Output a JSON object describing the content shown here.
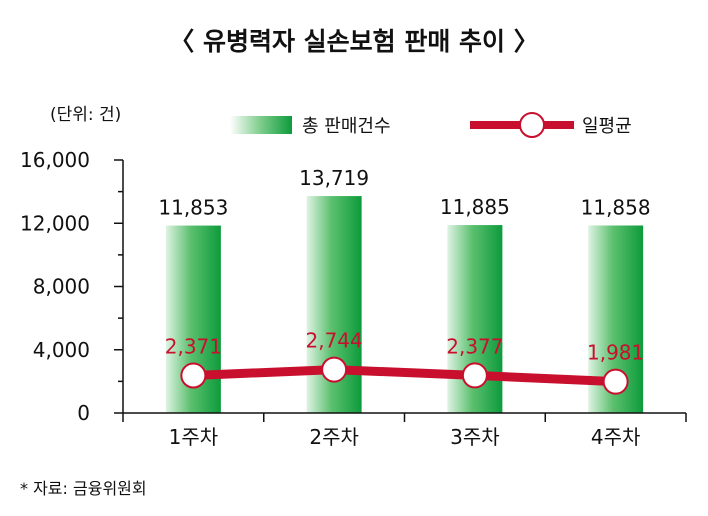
{
  "chart_data": {
    "type": "bar",
    "title": "〈 유병력자 실손보험 판매 추이 〉",
    "unit_label": "(단위: 건)",
    "source": "* 자료: 금융위원회",
    "categories": [
      "1주차",
      "2주차",
      "3주차",
      "4주차"
    ],
    "ylim": [
      0,
      16000
    ],
    "yticks": [
      "16,000",
      "12,000",
      "8,000",
      "4,000",
      "0"
    ],
    "ytick_values": [
      16000,
      12000,
      8000,
      4000,
      0
    ],
    "grid": false,
    "legend_position": "top",
    "series": [
      {
        "name": "총 판매건수",
        "kind": "bar",
        "values": [
          11853,
          13719,
          11885,
          11858
        ],
        "labels": [
          "11,853",
          "13,719",
          "11,885",
          "11,858"
        ],
        "color": "#1aa84a"
      },
      {
        "name": "일평균",
        "kind": "line",
        "values": [
          2371,
          2744,
          2377,
          1981
        ],
        "labels": [
          "2,371",
          "2,744",
          "2,377",
          "1,981"
        ],
        "color": "#c8102e"
      }
    ]
  }
}
